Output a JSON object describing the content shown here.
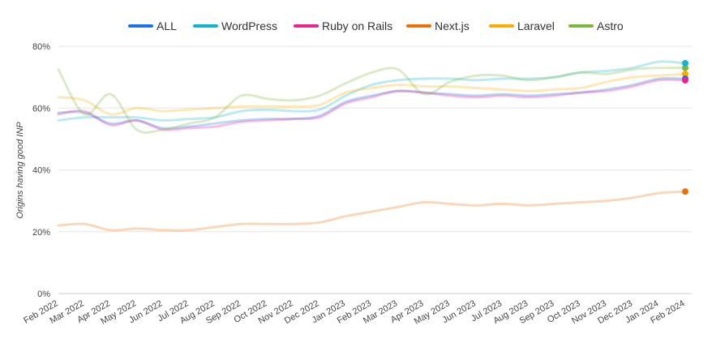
{
  "chart_data": {
    "type": "line",
    "title": "",
    "xlabel": "",
    "ylabel": "Origins having good INP",
    "ylim": [
      0,
      80
    ],
    "yticks": [
      "0%",
      "20%",
      "40%",
      "60%",
      "80%"
    ],
    "ytick_values": [
      0,
      20,
      40,
      60,
      80
    ],
    "grid": true,
    "legend_position": "top",
    "categories": [
      "Feb 2022",
      "Mar 2022",
      "Apr 2022",
      "May 2022",
      "Jun 2022",
      "Jul 2022",
      "Aug 2022",
      "Sep 2022",
      "Oct 2022",
      "Nov 2022",
      "Dec 2022",
      "Jan 2023",
      "Feb 2023",
      "Mar 2023",
      "Apr 2023",
      "May 2023",
      "Jun 2023",
      "Jul 2023",
      "Aug 2023",
      "Sep 2023",
      "Oct 2023",
      "Nov 2023",
      "Dec 2023",
      "Jan 2024",
      "Feb 2024"
    ],
    "series": [
      {
        "name": "ALL",
        "color": "#1a73e8",
        "values": [
          58.5,
          58.5,
          55,
          56,
          53.5,
          54,
          55,
          56,
          56.5,
          56.5,
          57.5,
          62,
          64,
          65.5,
          65,
          64.5,
          64,
          64.5,
          64,
          64.5,
          65,
          66,
          67.5,
          69.5,
          69.5
        ]
      },
      {
        "name": "WordPress",
        "color": "#12b5cb",
        "values": [
          56,
          57,
          57,
          57,
          56,
          56.5,
          57,
          59,
          59.5,
          59,
          59.5,
          64,
          67.5,
          69,
          69.5,
          69.5,
          69,
          69.5,
          69.5,
          70,
          71.5,
          72,
          73,
          75,
          74.5
        ]
      },
      {
        "name": "Ruby on Rails",
        "color": "#e52592",
        "values": [
          58,
          59,
          54.5,
          56,
          53,
          53.5,
          54,
          55.5,
          56,
          56.5,
          57,
          61.5,
          63.5,
          65.5,
          65,
          64,
          63.5,
          64,
          63.5,
          64,
          65,
          65.5,
          67,
          69,
          69
        ]
      },
      {
        "name": "Next.js",
        "color": "#e8710a",
        "values": [
          22,
          22.5,
          20.5,
          21,
          20.5,
          20.5,
          21.5,
          22.5,
          22.5,
          22.5,
          23,
          25,
          26.5,
          28,
          29.5,
          29,
          28.5,
          29,
          28.5,
          29,
          29.5,
          30,
          31,
          32.5,
          33
        ]
      },
      {
        "name": "Laravel",
        "color": "#f9ab00",
        "values": [
          63.5,
          62.5,
          58,
          60,
          59,
          59.5,
          60,
          60.5,
          60.5,
          60.5,
          61,
          65,
          66.5,
          67.5,
          67,
          67,
          66.5,
          66,
          65.5,
          66,
          66.5,
          68.5,
          70,
          70.5,
          71
        ]
      },
      {
        "name": "Astro",
        "color": "#7cb342",
        "values": [
          72.5,
          58,
          64.5,
          53,
          53,
          55,
          57,
          64,
          63,
          62.5,
          64,
          68,
          71.5,
          72.5,
          64.5,
          68.5,
          70.5,
          70.5,
          69,
          70,
          71.5,
          71,
          72.5,
          73,
          73
        ]
      }
    ]
  }
}
